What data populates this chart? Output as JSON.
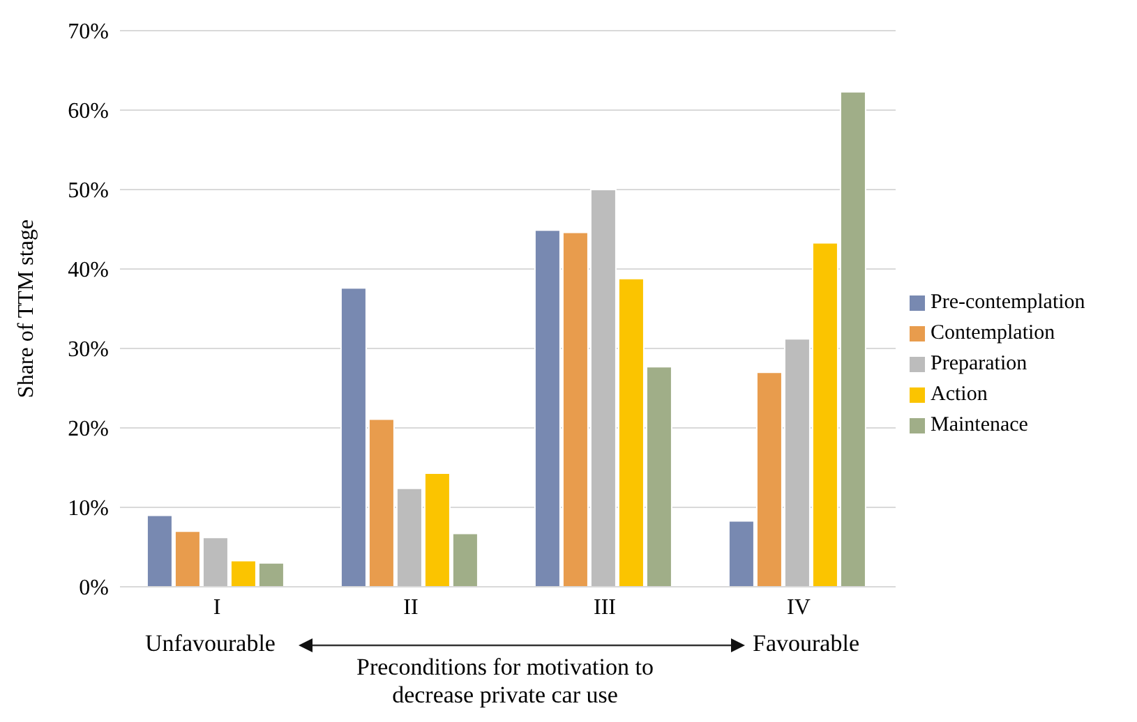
{
  "chart_data": {
    "type": "bar",
    "ylabel": "Share of TTM stage",
    "xlabel": "Preconditions for motivation to decrease private car use",
    "annotations": [
      "Unfavourable",
      "Favourable"
    ],
    "categories": [
      "I",
      "II",
      "III",
      "IV"
    ],
    "series": [
      {
        "name": "Pre-contemplation",
        "color": "#7889b1",
        "values": [
          9.0,
          37.6,
          44.9,
          8.3
        ]
      },
      {
        "name": "Contemplation",
        "color": "#e89c4d",
        "values": [
          7.0,
          21.1,
          44.6,
          27.0
        ]
      },
      {
        "name": "Preparation",
        "color": "#bcbcbc",
        "values": [
          6.2,
          12.4,
          50.0,
          31.2
        ]
      },
      {
        "name": "Action",
        "color": "#fbc400",
        "values": [
          3.3,
          14.3,
          38.8,
          43.3
        ]
      },
      {
        "name": "Maintenace",
        "color": "#a0ae88",
        "values": [
          3.0,
          6.7,
          27.7,
          62.3
        ]
      }
    ],
    "ylim": [
      0,
      70
    ],
    "yticks": [
      {
        "value": 0,
        "label": "0%"
      },
      {
        "value": 10,
        "label": "10%"
      },
      {
        "value": 20,
        "label": "20%"
      },
      {
        "value": 30,
        "label": "30%"
      },
      {
        "value": 40,
        "label": "40%"
      },
      {
        "value": 50,
        "label": "50%"
      },
      {
        "value": 60,
        "label": "60%"
      },
      {
        "value": 70,
        "label": "70%"
      }
    ],
    "grid": "y",
    "legend": "right"
  }
}
